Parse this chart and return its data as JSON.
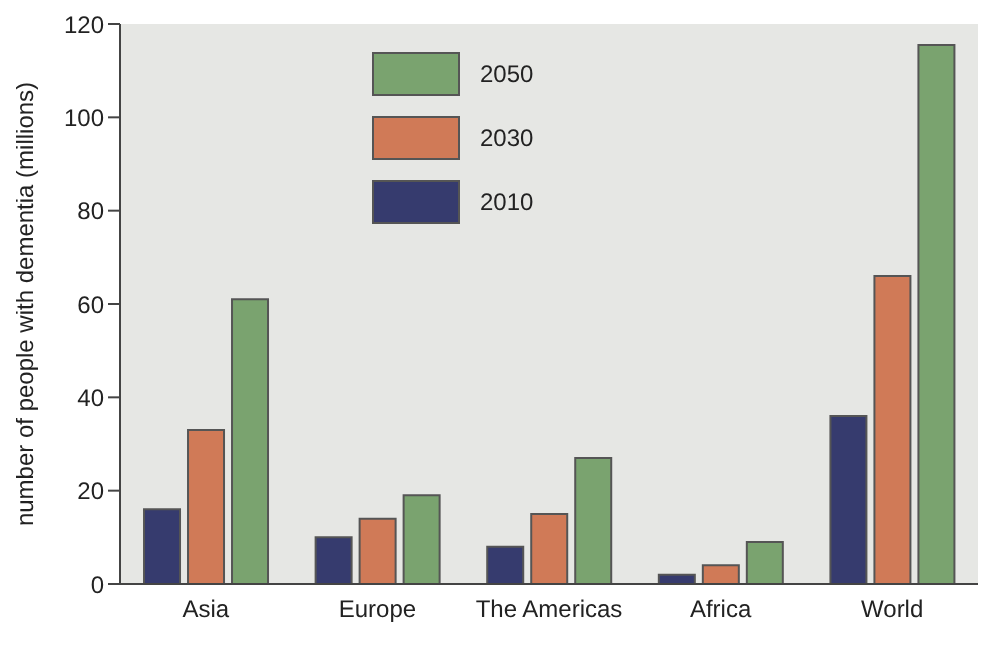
{
  "chart_data": {
    "type": "bar",
    "ylabel": "number of people with dementia (millions)",
    "categories": [
      "Asia",
      "Europe",
      "The Americas",
      "Africa",
      "World"
    ],
    "series": [
      {
        "name": "2010",
        "color": "#363b6e",
        "values": [
          16,
          10,
          8,
          2,
          36
        ]
      },
      {
        "name": "2030",
        "color": "#d07a57",
        "values": [
          33,
          14,
          15,
          4,
          66
        ]
      },
      {
        "name": "2050",
        "color": "#7aa36f",
        "values": [
          61,
          19,
          27,
          9,
          115.5
        ]
      }
    ],
    "ylim": [
      0,
      120
    ],
    "yticks": [
      0,
      20,
      40,
      60,
      80,
      100,
      120
    ],
    "grid": false,
    "legend": "top"
  }
}
